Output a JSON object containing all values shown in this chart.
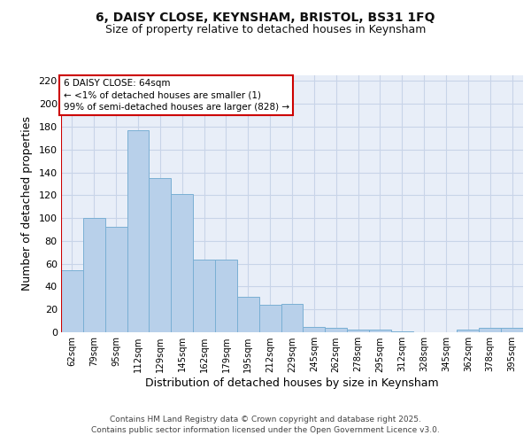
{
  "title_line1": "6, DAISY CLOSE, KEYNSHAM, BRISTOL, BS31 1FQ",
  "title_line2": "Size of property relative to detached houses in Keynsham",
  "xlabel": "Distribution of detached houses by size in Keynsham",
  "ylabel": "Number of detached properties",
  "categories": [
    "62sqm",
    "79sqm",
    "95sqm",
    "112sqm",
    "129sqm",
    "145sqm",
    "162sqm",
    "179sqm",
    "195sqm",
    "212sqm",
    "229sqm",
    "245sqm",
    "262sqm",
    "278sqm",
    "295sqm",
    "312sqm",
    "328sqm",
    "345sqm",
    "362sqm",
    "378sqm",
    "395sqm"
  ],
  "values": [
    54,
    100,
    92,
    177,
    135,
    121,
    64,
    64,
    31,
    24,
    25,
    5,
    4,
    2,
    2,
    1,
    0,
    0,
    2,
    4,
    4
  ],
  "bar_color": "#b8d0ea",
  "bar_edge_color": "#7aafd4",
  "annotation_box_color": "#cc0000",
  "annotation_text": "6 DAISY CLOSE: 64sqm\n← <1% of detached houses are smaller (1)\n99% of semi-detached houses are larger (828) →",
  "ylim": [
    0,
    225
  ],
  "yticks": [
    0,
    20,
    40,
    60,
    80,
    100,
    120,
    140,
    160,
    180,
    200,
    220
  ],
  "grid_color": "#c8d4e8",
  "bg_color": "#e8eef8",
  "marker_color": "#cc0000",
  "footer": "Contains HM Land Registry data © Crown copyright and database right 2025.\nContains public sector information licensed under the Open Government Licence v3.0."
}
